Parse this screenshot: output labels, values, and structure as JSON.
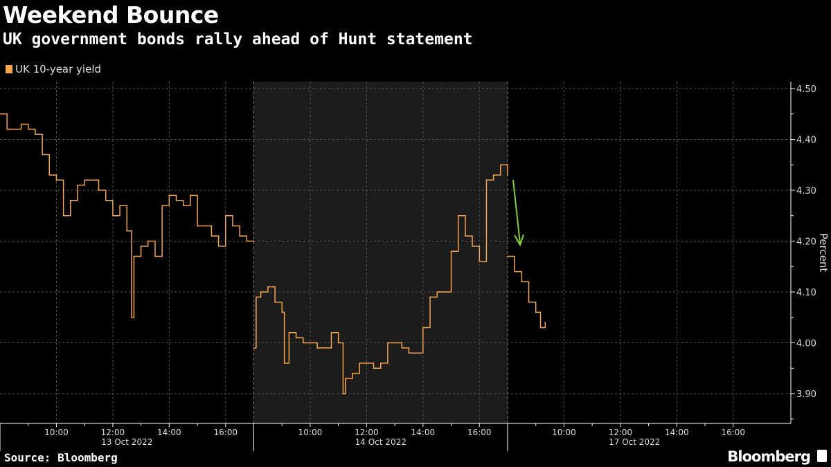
{
  "header": {
    "title": "Weekend Bounce",
    "subtitle": "UK government bonds rally ahead of Hunt statement"
  },
  "footer": {
    "source": "Source: Bloomberg",
    "brand": "Bloomberg"
  },
  "chart_data": {
    "type": "line",
    "title": "Weekend Bounce",
    "subtitle": "UK government bonds rally ahead of Hunt statement",
    "ylabel": "Percent",
    "ylim": [
      3.84,
      4.52
    ],
    "yticks": [
      "3.90",
      "4.00",
      "4.10",
      "4.20",
      "4.30",
      "4.40",
      "4.50"
    ],
    "session_hours": [
      8,
      17
    ],
    "days": [
      {
        "label": "13 Oct 2022",
        "ticks": [
          "10:00",
          "12:00",
          "14:00",
          "16:00"
        ],
        "shaded": false
      },
      {
        "label": "14 Oct 2022",
        "ticks": [
          "10:00",
          "12:00",
          "14:00",
          "16:00"
        ],
        "shaded": true
      },
      {
        "label": "17 Oct 2022",
        "ticks": [
          "10:00",
          "12:00",
          "14:00",
          "16:00"
        ],
        "shaded": false
      }
    ],
    "legend": [
      {
        "name": "UK 10-year yield",
        "color": "#f5a54a"
      }
    ],
    "annotation": {
      "type": "arrow",
      "color": "#7fd13b",
      "note": "drop on 17 Oct open"
    },
    "series": [
      {
        "name": "UK 10-year yield",
        "color": "#f5a54a",
        "points": [
          [
            0,
            "08:00",
            4.45
          ],
          [
            0,
            "08:15",
            4.42
          ],
          [
            0,
            "08:30",
            4.42
          ],
          [
            0,
            "08:45",
            4.43
          ],
          [
            0,
            "09:00",
            4.42
          ],
          [
            0,
            "09:15",
            4.41
          ],
          [
            0,
            "09:30",
            4.37
          ],
          [
            0,
            "09:45",
            4.33
          ],
          [
            0,
            "10:00",
            4.32
          ],
          [
            0,
            "10:15",
            4.25
          ],
          [
            0,
            "10:30",
            4.28
          ],
          [
            0,
            "10:45",
            4.31
          ],
          [
            0,
            "11:00",
            4.32
          ],
          [
            0,
            "11:15",
            4.32
          ],
          [
            0,
            "11:30",
            4.3
          ],
          [
            0,
            "11:45",
            4.28
          ],
          [
            0,
            "12:00",
            4.25
          ],
          [
            0,
            "12:15",
            4.27
          ],
          [
            0,
            "12:30",
            4.22
          ],
          [
            0,
            "12:40",
            4.05
          ],
          [
            0,
            "12:45",
            4.17
          ],
          [
            0,
            "13:00",
            4.19
          ],
          [
            0,
            "13:15",
            4.2
          ],
          [
            0,
            "13:30",
            4.17
          ],
          [
            0,
            "13:45",
            4.27
          ],
          [
            0,
            "14:00",
            4.29
          ],
          [
            0,
            "14:15",
            4.28
          ],
          [
            0,
            "14:30",
            4.27
          ],
          [
            0,
            "14:45",
            4.29
          ],
          [
            0,
            "15:00",
            4.23
          ],
          [
            0,
            "15:15",
            4.23
          ],
          [
            0,
            "15:30",
            4.21
          ],
          [
            0,
            "15:45",
            4.19
          ],
          [
            0,
            "16:00",
            4.25
          ],
          [
            0,
            "16:15",
            4.23
          ],
          [
            0,
            "16:30",
            4.21
          ],
          [
            0,
            "16:45",
            4.2
          ],
          [
            0,
            "17:00",
            4.2
          ],
          [
            1,
            "08:00",
            3.99
          ],
          [
            1,
            "08:05",
            4.09
          ],
          [
            1,
            "08:15",
            4.1
          ],
          [
            1,
            "08:30",
            4.11
          ],
          [
            1,
            "08:45",
            4.08
          ],
          [
            1,
            "09:00",
            4.06
          ],
          [
            1,
            "09:05",
            3.96
          ],
          [
            1,
            "09:15",
            4.02
          ],
          [
            1,
            "09:30",
            4.01
          ],
          [
            1,
            "09:45",
            4.0
          ],
          [
            1,
            "10:00",
            4.0
          ],
          [
            1,
            "10:15",
            3.99
          ],
          [
            1,
            "10:30",
            3.99
          ],
          [
            1,
            "10:45",
            4.02
          ],
          [
            1,
            "11:00",
            4.0
          ],
          [
            1,
            "11:10",
            3.9
          ],
          [
            1,
            "11:15",
            3.93
          ],
          [
            1,
            "11:30",
            3.94
          ],
          [
            1,
            "11:45",
            3.96
          ],
          [
            1,
            "12:00",
            3.96
          ],
          [
            1,
            "12:15",
            3.95
          ],
          [
            1,
            "12:30",
            3.96
          ],
          [
            1,
            "12:45",
            4.0
          ],
          [
            1,
            "13:00",
            4.0
          ],
          [
            1,
            "13:15",
            3.99
          ],
          [
            1,
            "13:30",
            3.98
          ],
          [
            1,
            "13:45",
            3.98
          ],
          [
            1,
            "14:00",
            4.03
          ],
          [
            1,
            "14:15",
            4.09
          ],
          [
            1,
            "14:30",
            4.1
          ],
          [
            1,
            "14:45",
            4.1
          ],
          [
            1,
            "15:00",
            4.18
          ],
          [
            1,
            "15:15",
            4.25
          ],
          [
            1,
            "15:30",
            4.21
          ],
          [
            1,
            "15:45",
            4.19
          ],
          [
            1,
            "16:00",
            4.16
          ],
          [
            1,
            "16:15",
            4.32
          ],
          [
            1,
            "16:30",
            4.33
          ],
          [
            1,
            "16:45",
            4.35
          ],
          [
            1,
            "17:00",
            4.33
          ],
          [
            2,
            "08:00",
            4.17
          ],
          [
            2,
            "08:15",
            4.14
          ],
          [
            2,
            "08:30",
            4.12
          ],
          [
            2,
            "08:45",
            4.08
          ],
          [
            2,
            "09:00",
            4.06
          ],
          [
            2,
            "09:10",
            4.03
          ],
          [
            2,
            "09:20",
            4.04
          ]
        ]
      }
    ]
  }
}
